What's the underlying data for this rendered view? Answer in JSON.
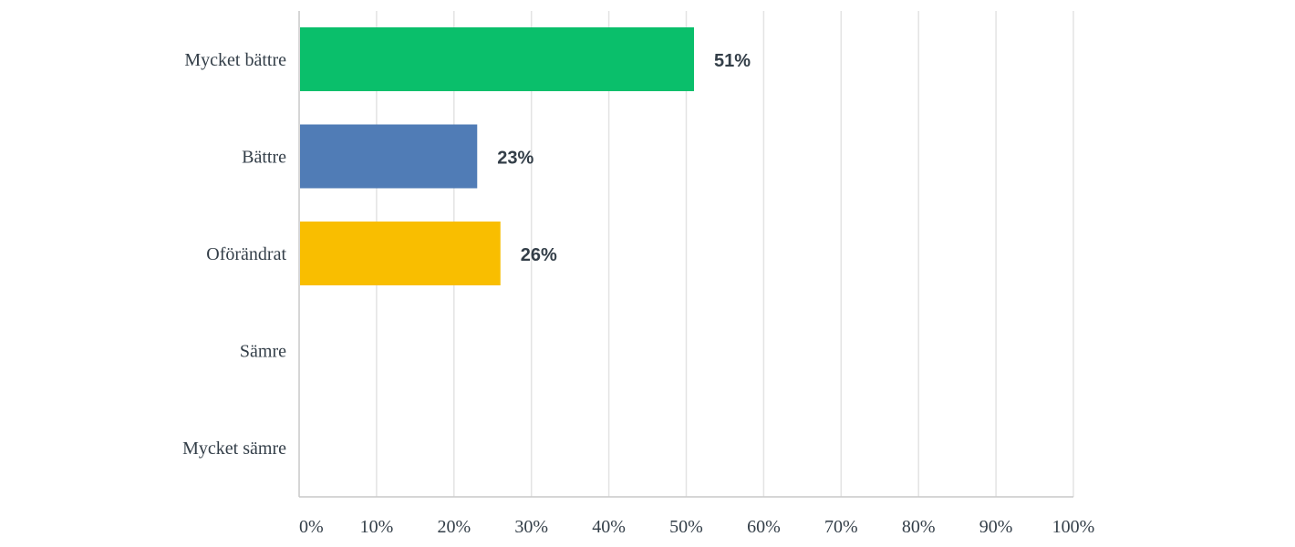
{
  "chart_data": {
    "type": "bar",
    "orientation": "horizontal",
    "categories": [
      "Mycket bättre",
      "Bättre",
      "Oförändrat",
      "Sämre",
      "Mycket sämre"
    ],
    "values": [
      51,
      23,
      26,
      0,
      0
    ],
    "value_labels": [
      "51%",
      "23%",
      "26%",
      "",
      ""
    ],
    "bar_colors": [
      "#0abf6b",
      "#507cb6",
      "#f9be00",
      "#6bc8cd",
      "#ff8b4f"
    ],
    "x_ticks": [
      "0%",
      "10%",
      "20%",
      "30%",
      "40%",
      "50%",
      "60%",
      "70%",
      "80%",
      "90%",
      "100%"
    ],
    "xlim": [
      0,
      100
    ],
    "grid": true,
    "legend": false
  }
}
